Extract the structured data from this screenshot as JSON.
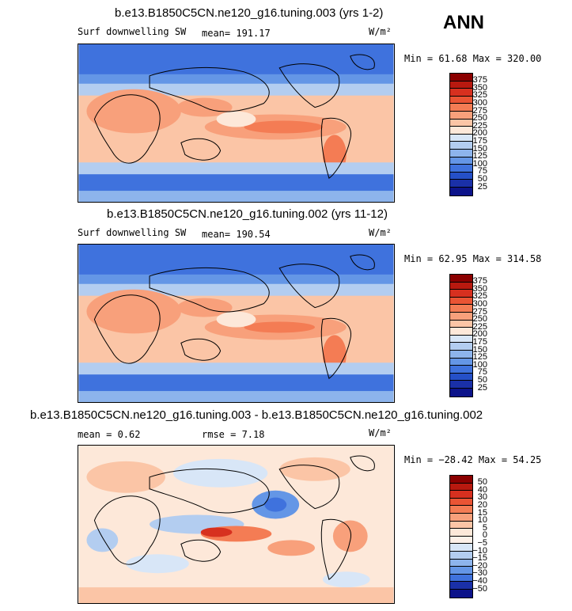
{
  "season": "ANN",
  "panels": [
    {
      "title": "b.e13.B1850C5CN.ne120_g16.tuning.003 (yrs 1-2)",
      "variable": "Surf downwelling SW",
      "stat1": "mean= 191.17",
      "stat2": "",
      "units": "W/m²",
      "minmax": "Min =  61.68 Max = 320.00",
      "colorbar_labels": [
        "375",
        "350",
        "325",
        "300",
        "275",
        "250",
        "225",
        "200",
        "175",
        "150",
        "125",
        "100",
        "75",
        "50",
        "25"
      ],
      "colors": [
        "#8b0000",
        "#b8190f",
        "#d7301f",
        "#ea5434",
        "#f47c54",
        "#f8a07b",
        "#fbc5a6",
        "#fde8d9",
        "#d8e6f7",
        "#b3cdf0",
        "#8db4ec",
        "#6496e6",
        "#3f72dd",
        "#2550c8",
        "#1a30a8",
        "#0c138a"
      ]
    },
    {
      "title": "b.e13.B1850C5CN.ne120_g16.tuning.002 (yrs 11-12)",
      "variable": "Surf downwelling SW",
      "stat1": "mean= 190.54",
      "stat2": "",
      "units": "W/m²",
      "minmax": "Min =  62.95 Max = 314.58",
      "colorbar_labels": [
        "375",
        "350",
        "325",
        "300",
        "275",
        "250",
        "225",
        "200",
        "175",
        "150",
        "125",
        "100",
        "75",
        "50",
        "25"
      ],
      "colors": [
        "#8b0000",
        "#b8190f",
        "#d7301f",
        "#ea5434",
        "#f47c54",
        "#f8a07b",
        "#fbc5a6",
        "#fde8d9",
        "#d8e6f7",
        "#b3cdf0",
        "#8db4ec",
        "#6496e6",
        "#3f72dd",
        "#2550c8",
        "#1a30a8",
        "#0c138a"
      ]
    },
    {
      "title": "b.e13.B1850C5CN.ne120_g16.tuning.003 - b.e13.B1850C5CN.ne120_g16.tuning.002",
      "variable": "",
      "stat1": "mean =    0.62",
      "stat2": "rmse =   7.18",
      "units": "W/m²",
      "minmax": "Min = −28.42 Max =  54.25",
      "colorbar_labels": [
        "50",
        "40",
        "30",
        "20",
        "15",
        "10",
        "5",
        "0",
        "−5",
        "−10",
        "−15",
        "−20",
        "−30",
        "−40",
        "−50"
      ],
      "colors": [
        "#8b0000",
        "#b8190f",
        "#d7301f",
        "#ea5434",
        "#f47c54",
        "#f8a07b",
        "#fbc5a6",
        "#fde8d9",
        "#fdf0e8",
        "#d8e6f7",
        "#b3cdf0",
        "#8db4ec",
        "#6496e6",
        "#3f72dd",
        "#1a30a8",
        "#0c138a"
      ]
    }
  ]
}
